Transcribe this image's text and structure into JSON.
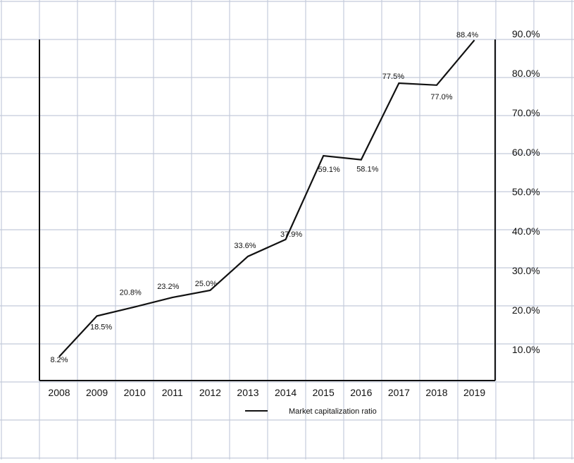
{
  "chart_data": {
    "type": "line",
    "categories": [
      "2008",
      "2009",
      "2010",
      "2011",
      "2012",
      "2013",
      "2014",
      "2015",
      "2016",
      "2017",
      "2018",
      "2019"
    ],
    "series": [
      {
        "name": "Market capitalization ratio",
        "values": [
          8.2,
          18.5,
          20.8,
          23.2,
          25.0,
          33.6,
          37.9,
          59.1,
          58.1,
          77.5,
          77.0,
          88.4
        ],
        "labels": [
          "8.2%",
          "18.5%",
          "20.8%",
          "23.2%",
          "25.0%",
          "33.6%",
          "37.9%",
          "59.1%",
          "58.1%",
          "77.5%",
          "77.0%",
          "88.4%"
        ],
        "color": "#111111"
      }
    ],
    "y_ticks": [
      "10.0%",
      "20.0%",
      "30.0%",
      "40.0%",
      "50.0%",
      "60.0%",
      "70.0%",
      "80.0%",
      "90.0%"
    ],
    "y_tick_values": [
      10,
      20,
      30,
      40,
      50,
      60,
      70,
      80,
      90
    ],
    "ylim": [
      0,
      90
    ],
    "y_axis_side": "right",
    "grid": true,
    "legend_position": "bottom-center",
    "title": "",
    "xlabel": "",
    "ylabel": ""
  },
  "colors": {
    "background": "#ffffff",
    "grid": "#c4cbdb",
    "axis": "#111111",
    "line": "#111111"
  }
}
